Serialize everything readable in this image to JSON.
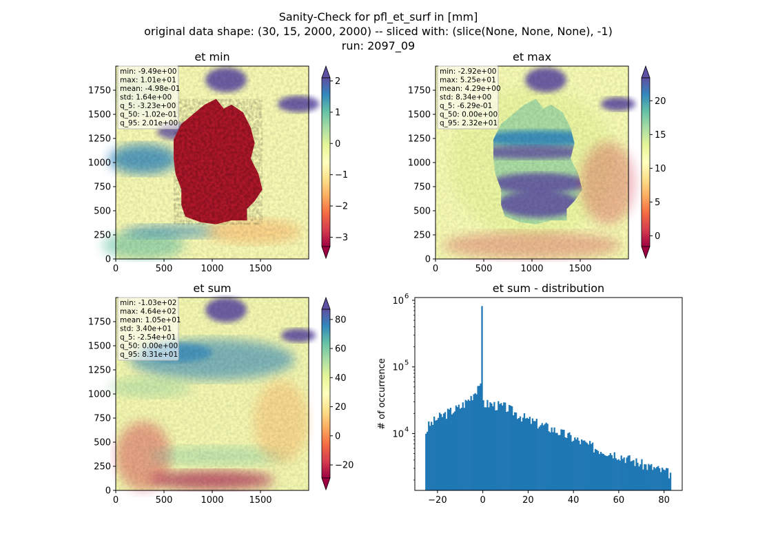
{
  "figure": {
    "title_lines": [
      "Sanity-Check for pfl_et_surf in [mm]",
      "original data shape: (30, 15, 2000, 2000) -- sliced with: (slice(None, None, None), -1)",
      "run: 2097_09"
    ]
  },
  "chart_data": [
    {
      "type": "heatmap",
      "title": "et min",
      "x_ticks": [
        "0",
        "500",
        "1000",
        "1500"
      ],
      "y_ticks": [
        "0",
        "250",
        "500",
        "750",
        "1000",
        "1250",
        "1500",
        "1750"
      ],
      "xlim": [
        0,
        2000
      ],
      "ylim": [
        0,
        2000
      ],
      "colormap": "Spectral",
      "colorbar": {
        "ticks": [
          "−3",
          "−2",
          "−1",
          "0",
          "1",
          "2"
        ],
        "range": [
          -3.3,
          2.1
        ],
        "extend": "both"
      },
      "stats": [
        "min: -9.49e+00",
        "max: 1.01e+01",
        "mean: -4.98e-01",
        "std: 1.64e+00",
        "q_5: -3.23e+00",
        "q_50: -1.02e-01",
        "q_95: 2.01e+00"
      ]
    },
    {
      "type": "heatmap",
      "title": "et max",
      "x_ticks": [
        "0",
        "500",
        "1000",
        "1500"
      ],
      "y_ticks": [
        "0",
        "250",
        "500",
        "750",
        "1000",
        "1250",
        "1500",
        "1750"
      ],
      "xlim": [
        0,
        2000
      ],
      "ylim": [
        0,
        2000
      ],
      "colormap": "Spectral",
      "colorbar": {
        "ticks": [
          "0",
          "5",
          "10",
          "15",
          "20"
        ],
        "range": [
          -1.6,
          23.4
        ],
        "extend": "both"
      },
      "stats": [
        "min: -2.92e+00",
        "max: 5.25e+01",
        "mean: 4.29e+00",
        "std: 8.34e+00",
        "q_5: -6.29e-01",
        "q_50: 0.00e+00",
        "q_95: 2.32e+01"
      ]
    },
    {
      "type": "heatmap",
      "title": "et sum",
      "x_ticks": [
        "0",
        "500",
        "1000",
        "1500"
      ],
      "y_ticks": [
        "0",
        "250",
        "500",
        "750",
        "1000",
        "1250",
        "1500",
        "1750"
      ],
      "xlim": [
        0,
        2000
      ],
      "ylim": [
        0,
        2000
      ],
      "colormap": "Spectral",
      "colorbar": {
        "ticks": [
          "−20",
          "0",
          "20",
          "40",
          "60",
          "80"
        ],
        "range": [
          -29,
          87
        ],
        "extend": "both"
      },
      "stats": [
        "min: -1.03e+02",
        "max: 4.64e+02",
        "mean: 1.05e+01",
        "std: 3.40e+01",
        "q_5: -2.54e+01",
        "q_50: 0.00e+00",
        "q_95: 8.31e+01"
      ]
    },
    {
      "type": "bar",
      "title": "et sum - distribution",
      "ylabel": "# of occurrence",
      "xlabel": "",
      "y_scale": "log",
      "xlim": [
        -30,
        88
      ],
      "ylim": [
        1400,
        1100000
      ],
      "x_ticks": [
        "−20",
        "0",
        "20",
        "40",
        "60",
        "80"
      ],
      "y_ticks": [
        "10",
        "10",
        "10"
      ],
      "y_tick_exponents": [
        "4",
        "5",
        "6"
      ],
      "color": "#1f77b4",
      "histogram": {
        "range": [
          -25.4,
          83.1
        ],
        "bins": 180,
        "anchors": [
          [
            -25.4,
            10000
          ],
          [
            -24,
            13000
          ],
          [
            -20,
            17000
          ],
          [
            -15,
            21000
          ],
          [
            -10,
            25000
          ],
          [
            -6,
            33000
          ],
          [
            -3,
            45000
          ],
          [
            -1.5,
            60000
          ],
          [
            -0.5,
            40000
          ],
          [
            0.5,
            28000
          ],
          [
            3,
            28000
          ],
          [
            10,
            25000
          ],
          [
            20,
            16000
          ],
          [
            30,
            12000
          ],
          [
            40,
            8500
          ],
          [
            50,
            6000
          ],
          [
            60,
            4800
          ],
          [
            70,
            3500
          ],
          [
            83.1,
            2500
          ]
        ],
        "spike": {
          "x": -0.3,
          "count": 820000
        }
      }
    }
  ]
}
